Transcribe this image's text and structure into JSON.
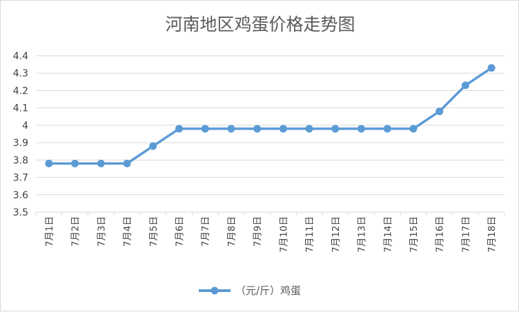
{
  "chart_data": {
    "type": "line",
    "title": "河南地区鸡蛋价格走势图",
    "categories": [
      "7月1日",
      "7月2日",
      "7月3日",
      "7月4日",
      "7月5日",
      "7月6日",
      "7月7日",
      "7月8日",
      "7月9日",
      "7月10日",
      "7月11日",
      "7月12日",
      "7月13日",
      "7月14日",
      "7月15日",
      "7月16日",
      "7月17日",
      "7月18日"
    ],
    "series": [
      {
        "name": "（元/斤）鸡蛋",
        "values": [
          3.78,
          3.78,
          3.78,
          3.78,
          3.88,
          3.98,
          3.98,
          3.98,
          3.98,
          3.98,
          3.98,
          3.98,
          3.98,
          3.98,
          3.98,
          4.08,
          4.23,
          4.33
        ]
      }
    ],
    "ylim": [
      3.5,
      4.4
    ],
    "yticks": [
      "3.5",
      "3.6",
      "3.7",
      "3.8",
      "3.9",
      "4",
      "4.1",
      "4.2",
      "4.3",
      "4.4"
    ],
    "grid": true,
    "legend": "bottom",
    "color": "#5b9bd5",
    "grid_color": "#d9d9d9"
  }
}
